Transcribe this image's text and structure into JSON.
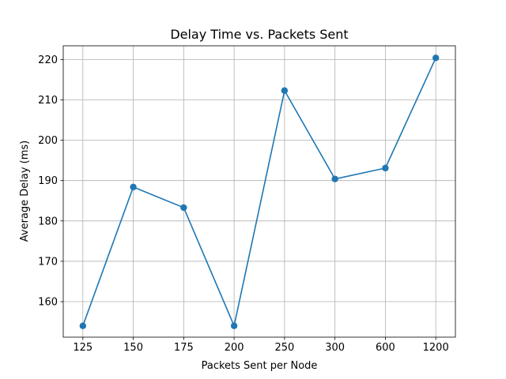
{
  "chart_data": {
    "type": "line",
    "title": "Delay Time vs. Packets Sent",
    "xlabel": "Packets Sent per Node",
    "ylabel": "Average Delay (ms)",
    "categories": [
      "125",
      "150",
      "175",
      "200",
      "250",
      "300",
      "600",
      "1200"
    ],
    "series": [
      {
        "values": [
          154.0,
          188.4,
          183.3,
          154.0,
          212.3,
          190.4,
          193.1,
          220.4
        ],
        "color": "#1f77b4",
        "marker": "circle"
      }
    ],
    "yticks": [
      160,
      170,
      180,
      190,
      200,
      210,
      220
    ],
    "ylim": [
      151.2,
      223.4
    ],
    "grid": true
  }
}
